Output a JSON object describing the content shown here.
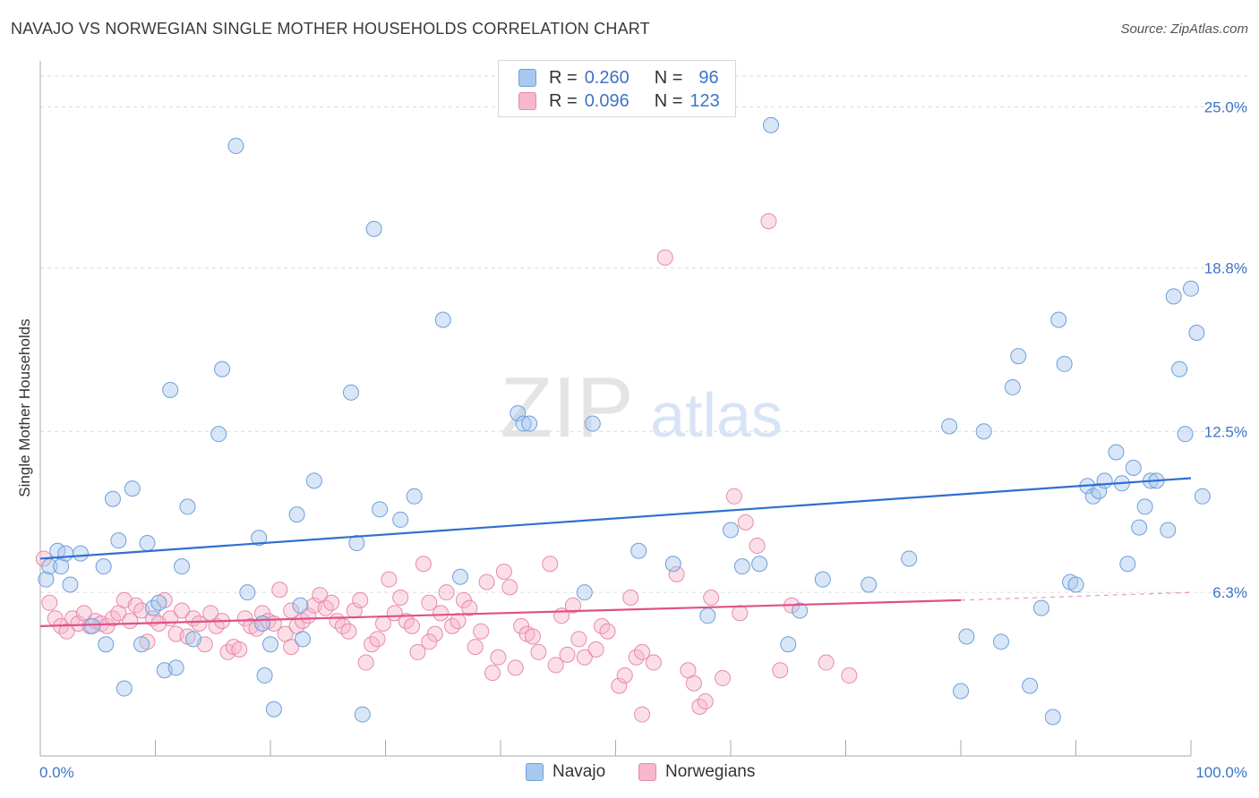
{
  "title": "NAVAJO VS NORWEGIAN SINGLE MOTHER HOUSEHOLDS CORRELATION CHART",
  "source": "Source: ZipAtlas.com",
  "watermark": {
    "zip": "ZIP",
    "atlas": "atlas"
  },
  "colors": {
    "navajo_fill": "#a9c8f0",
    "navajo_stroke": "#6e9fd8",
    "navajo_line": "#2f6fd0",
    "norw_fill": "#f7b8cc",
    "norw_stroke": "#e88aa9",
    "norw_line": "#e0508a",
    "tick_label": "#3d73c8",
    "grid": "#dcdcdc"
  },
  "legend_top": {
    "rows": [
      {
        "r_label": "R =",
        "r_value": "0.260",
        "n_label": "N =",
        "n_value": "96"
      },
      {
        "r_label": "R =",
        "r_value": "0.096",
        "n_label": "N =",
        "n_value": "123"
      }
    ]
  },
  "legend_bottom": [
    "Navajo",
    "Norwegians"
  ],
  "chart_data": {
    "type": "scatter",
    "title": "NAVAJO VS NORWEGIAN SINGLE MOTHER HOUSEHOLDS CORRELATION CHART",
    "xlabel": "",
    "ylabel": "Single Mother Households",
    "xlim": [
      0,
      100
    ],
    "ylim": [
      0,
      26.5
    ],
    "x_tick_labels": [
      "0.0%",
      "100.0%"
    ],
    "y_ticks": [
      6.3,
      12.5,
      18.8,
      25.0
    ],
    "y_tick_labels": [
      "6.3%",
      "12.5%",
      "18.8%",
      "25.0%"
    ],
    "grid": "horizontal dashed",
    "legend_position": "top-center",
    "series": [
      {
        "name": "Navajo",
        "trend": {
          "x": [
            0,
            100
          ],
          "y": [
            7.6,
            10.7
          ]
        },
        "points": [
          [
            0.5,
            6.8
          ],
          [
            0.8,
            7.3
          ],
          [
            1.5,
            7.9
          ],
          [
            1.8,
            7.3
          ],
          [
            2.2,
            7.8
          ],
          [
            2.6,
            6.6
          ],
          [
            3.5,
            7.8
          ],
          [
            4.5,
            5.0
          ],
          [
            5.5,
            7.3
          ],
          [
            5.7,
            4.3
          ],
          [
            6.3,
            9.9
          ],
          [
            6.8,
            8.3
          ],
          [
            7.3,
            2.6
          ],
          [
            8.0,
            10.3
          ],
          [
            8.8,
            4.3
          ],
          [
            9.3,
            8.2
          ],
          [
            9.8,
            5.7
          ],
          [
            10.3,
            5.9
          ],
          [
            10.8,
            3.3
          ],
          [
            11.3,
            14.1
          ],
          [
            11.8,
            3.4
          ],
          [
            12.3,
            7.3
          ],
          [
            12.8,
            9.6
          ],
          [
            13.3,
            4.5
          ],
          [
            15.8,
            14.9
          ],
          [
            15.5,
            12.4
          ],
          [
            17.0,
            23.5
          ],
          [
            18.0,
            6.3
          ],
          [
            19.0,
            8.4
          ],
          [
            19.3,
            5.1
          ],
          [
            19.5,
            3.1
          ],
          [
            20.0,
            4.3
          ],
          [
            20.3,
            1.8
          ],
          [
            22.3,
            9.3
          ],
          [
            22.6,
            5.8
          ],
          [
            22.8,
            4.5
          ],
          [
            23.8,
            10.6
          ],
          [
            27.0,
            14.0
          ],
          [
            27.5,
            8.2
          ],
          [
            28.0,
            1.6
          ],
          [
            29.0,
            20.3
          ],
          [
            29.5,
            9.5
          ],
          [
            31.3,
            9.1
          ],
          [
            32.5,
            10.0
          ],
          [
            35.0,
            16.8
          ],
          [
            36.5,
            6.9
          ],
          [
            41.5,
            13.2
          ],
          [
            42.0,
            12.8
          ],
          [
            42.5,
            12.8
          ],
          [
            47.3,
            6.3
          ],
          [
            48.0,
            12.8
          ],
          [
            52.0,
            7.9
          ],
          [
            55.0,
            7.4
          ],
          [
            58.0,
            5.4
          ],
          [
            60.0,
            8.7
          ],
          [
            61.0,
            7.3
          ],
          [
            62.5,
            7.4
          ],
          [
            63.5,
            24.3
          ],
          [
            65.0,
            4.3
          ],
          [
            66.0,
            5.6
          ],
          [
            68.0,
            6.8
          ],
          [
            72.0,
            6.6
          ],
          [
            75.5,
            7.6
          ],
          [
            79.0,
            12.7
          ],
          [
            80.0,
            2.5
          ],
          [
            80.5,
            4.6
          ],
          [
            82.0,
            12.5
          ],
          [
            83.5,
            4.4
          ],
          [
            84.5,
            14.2
          ],
          [
            85.0,
            15.4
          ],
          [
            86.0,
            2.7
          ],
          [
            87.0,
            5.7
          ],
          [
            88.0,
            1.5
          ],
          [
            88.5,
            16.8
          ],
          [
            89.0,
            15.1
          ],
          [
            89.5,
            6.7
          ],
          [
            90.0,
            6.6
          ],
          [
            91.0,
            10.4
          ],
          [
            91.5,
            10.0
          ],
          [
            92.0,
            10.2
          ],
          [
            92.5,
            10.6
          ],
          [
            93.5,
            11.7
          ],
          [
            94.0,
            10.5
          ],
          [
            94.5,
            7.4
          ],
          [
            95.0,
            11.1
          ],
          [
            95.5,
            8.8
          ],
          [
            96.0,
            9.6
          ],
          [
            96.5,
            10.6
          ],
          [
            97.0,
            10.6
          ],
          [
            98.0,
            8.7
          ],
          [
            98.5,
            17.7
          ],
          [
            99.0,
            14.9
          ],
          [
            99.5,
            12.4
          ],
          [
            100.0,
            18.0
          ],
          [
            100.5,
            16.3
          ],
          [
            101.0,
            10.0
          ]
        ]
      },
      {
        "name": "Norwegians",
        "trend": {
          "x": [
            0,
            80
          ],
          "y": [
            5.0,
            6.0
          ]
        },
        "trend_ext": {
          "x": [
            80,
            100
          ],
          "y": [
            6.0,
            6.3
          ]
        },
        "points": [
          [
            0.3,
            7.6
          ],
          [
            0.8,
            5.9
          ],
          [
            1.3,
            5.3
          ],
          [
            1.8,
            5.0
          ],
          [
            2.3,
            4.8
          ],
          [
            2.8,
            5.3
          ],
          [
            3.3,
            5.1
          ],
          [
            3.8,
            5.5
          ],
          [
            4.3,
            5.0
          ],
          [
            4.8,
            5.2
          ],
          [
            5.3,
            5.1
          ],
          [
            5.8,
            5.0
          ],
          [
            6.3,
            5.3
          ],
          [
            6.8,
            5.5
          ],
          [
            7.3,
            6.0
          ],
          [
            7.8,
            5.2
          ],
          [
            8.3,
            5.8
          ],
          [
            8.8,
            5.6
          ],
          [
            9.3,
            4.4
          ],
          [
            9.8,
            5.3
          ],
          [
            10.3,
            5.1
          ],
          [
            10.8,
            6.0
          ],
          [
            11.3,
            5.3
          ],
          [
            11.8,
            4.7
          ],
          [
            12.3,
            5.6
          ],
          [
            12.8,
            4.6
          ],
          [
            13.3,
            5.3
          ],
          [
            13.8,
            5.1
          ],
          [
            14.3,
            4.3
          ],
          [
            14.8,
            5.5
          ],
          [
            15.3,
            5.0
          ],
          [
            15.8,
            5.2
          ],
          [
            16.3,
            4.0
          ],
          [
            16.8,
            4.2
          ],
          [
            17.3,
            4.1
          ],
          [
            17.8,
            5.3
          ],
          [
            18.3,
            5.0
          ],
          [
            18.8,
            4.9
          ],
          [
            19.3,
            5.5
          ],
          [
            19.8,
            5.2
          ],
          [
            20.3,
            5.1
          ],
          [
            20.8,
            6.4
          ],
          [
            21.3,
            4.7
          ],
          [
            21.8,
            4.2
          ],
          [
            22.3,
            5.0
          ],
          [
            22.8,
            5.2
          ],
          [
            23.3,
            5.4
          ],
          [
            23.8,
            5.8
          ],
          [
            24.3,
            6.2
          ],
          [
            24.8,
            5.7
          ],
          [
            25.3,
            5.9
          ],
          [
            25.8,
            5.2
          ],
          [
            26.3,
            5.0
          ],
          [
            26.8,
            4.8
          ],
          [
            27.3,
            5.6
          ],
          [
            27.8,
            6.0
          ],
          [
            28.3,
            3.6
          ],
          [
            28.8,
            4.3
          ],
          [
            29.3,
            4.5
          ],
          [
            29.8,
            5.1
          ],
          [
            30.3,
            6.8
          ],
          [
            30.8,
            5.5
          ],
          [
            31.3,
            6.1
          ],
          [
            31.8,
            5.2
          ],
          [
            32.3,
            5.0
          ],
          [
            32.8,
            4.0
          ],
          [
            33.3,
            7.4
          ],
          [
            33.8,
            5.9
          ],
          [
            34.3,
            4.7
          ],
          [
            34.8,
            5.5
          ],
          [
            35.3,
            6.3
          ],
          [
            35.8,
            5.0
          ],
          [
            36.3,
            5.2
          ],
          [
            36.8,
            6.0
          ],
          [
            37.3,
            5.7
          ],
          [
            37.8,
            4.2
          ],
          [
            38.3,
            4.8
          ],
          [
            38.8,
            6.7
          ],
          [
            39.3,
            3.2
          ],
          [
            39.8,
            3.8
          ],
          [
            40.3,
            7.1
          ],
          [
            40.8,
            6.5
          ],
          [
            41.3,
            3.4
          ],
          [
            41.8,
            5.0
          ],
          [
            42.3,
            4.7
          ],
          [
            43.3,
            4.0
          ],
          [
            44.3,
            7.4
          ],
          [
            44.8,
            3.5
          ],
          [
            45.3,
            5.4
          ],
          [
            45.8,
            3.9
          ],
          [
            46.3,
            5.8
          ],
          [
            46.8,
            4.5
          ],
          [
            47.3,
            3.8
          ],
          [
            48.3,
            4.1
          ],
          [
            48.8,
            5.0
          ],
          [
            49.3,
            4.8
          ],
          [
            50.3,
            2.7
          ],
          [
            50.8,
            3.1
          ],
          [
            51.3,
            6.1
          ],
          [
            51.8,
            3.8
          ],
          [
            52.3,
            4.0
          ],
          [
            53.3,
            3.6
          ],
          [
            54.3,
            19.2
          ],
          [
            55.3,
            7.0
          ],
          [
            56.3,
            3.3
          ],
          [
            56.8,
            2.8
          ],
          [
            57.3,
            1.9
          ],
          [
            57.8,
            2.1
          ],
          [
            58.3,
            6.1
          ],
          [
            59.3,
            3.0
          ],
          [
            60.3,
            10.0
          ],
          [
            61.3,
            9.0
          ],
          [
            62.3,
            8.1
          ],
          [
            63.3,
            20.6
          ],
          [
            64.3,
            3.3
          ],
          [
            65.3,
            5.8
          ],
          [
            68.3,
            3.6
          ],
          [
            70.3,
            3.1
          ],
          [
            52.3,
            1.6
          ],
          [
            42.8,
            4.6
          ],
          [
            60.8,
            5.5
          ],
          [
            33.8,
            4.4
          ],
          [
            21.8,
            5.6
          ]
        ]
      }
    ]
  }
}
